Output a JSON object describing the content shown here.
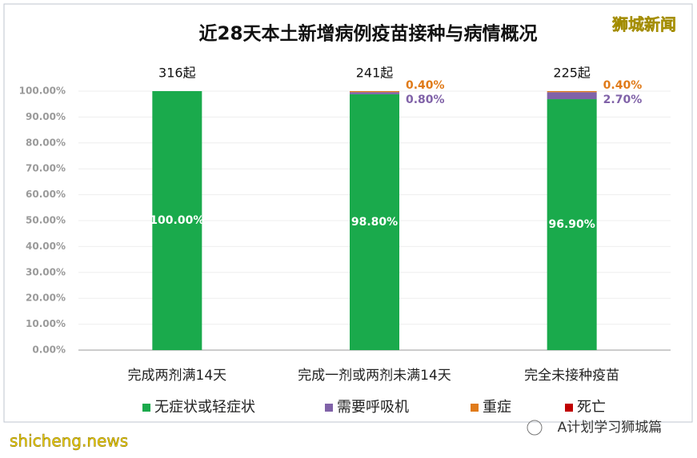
{
  "chart_data": {
    "type": "stacked_bar",
    "title": "近28天本土新增病例疫苗接种与病情概况",
    "categories": [
      "完成两剂满14天",
      "完成一剂或两剂未满14天",
      "完全未接种疫苗"
    ],
    "totals_labels": [
      "316起",
      "241起",
      "225起"
    ],
    "series": [
      {
        "name": "无症状或轻症状",
        "color": "#1aaa4c",
        "values": [
          100,
          98.8,
          96.9
        ],
        "value_labels": [
          "100.00%",
          "98.80%",
          "96.90%"
        ]
      },
      {
        "name": "需要呼吸机",
        "color": "#8062a8",
        "values": [
          0,
          0.8,
          2.7
        ],
        "value_labels": [
          null,
          "0.80%",
          "2.70%"
        ]
      },
      {
        "name": "重症",
        "color": "#e07b1a",
        "values": [
          0,
          0.4,
          0.4
        ],
        "value_labels": [
          null,
          "0.40%",
          "0.40%"
        ]
      },
      {
        "name": "死亡",
        "color": "#c00000",
        "values": [
          0,
          0,
          0
        ],
        "value_labels": [
          null,
          null,
          null
        ]
      }
    ],
    "ylim": [
      0,
      100
    ],
    "yticks": [
      {
        "value": 0,
        "label": "0.00%"
      },
      {
        "value": 10,
        "label": "10.00%"
      },
      {
        "value": 20,
        "label": "20.00%"
      },
      {
        "value": 30,
        "label": "30.00%"
      },
      {
        "value": 40,
        "label": "40.00%"
      },
      {
        "value": 50,
        "label": "50.00%"
      },
      {
        "value": 60,
        "label": "60.00%"
      },
      {
        "value": 70,
        "label": "70.00%"
      },
      {
        "value": 80,
        "label": "80.00%"
      },
      {
        "value": 90,
        "label": "90.00%"
      },
      {
        "value": 100,
        "label": "100.00%"
      }
    ],
    "grid": true,
    "legend": "bottom",
    "annotations": [
      "狮城新闻",
      "shicheng.news",
      "A计划学习狮城篇"
    ]
  }
}
